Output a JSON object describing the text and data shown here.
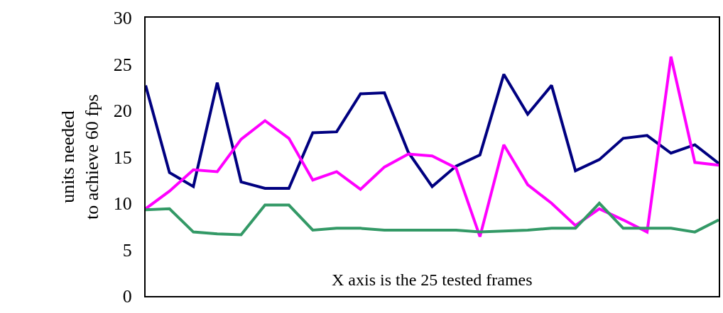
{
  "chart_data": {
    "type": "line",
    "ylabel": "units needed\nto achieve 60 fps",
    "annotations": [
      "X axis is the 25 tested frames"
    ],
    "categories": [
      null,
      null,
      null,
      null,
      null,
      null,
      null,
      null,
      null,
      null,
      null,
      null,
      null,
      null,
      null,
      null,
      null,
      null,
      null,
      null,
      null,
      null,
      null,
      null,
      null
    ],
    "series": [
      {
        "color": "#000080",
        "values": [
          22.7,
          13.3,
          11.8,
          23.0,
          12.3,
          11.6,
          11.6,
          17.6,
          17.7,
          21.8,
          21.9,
          15.5,
          11.8,
          14.0,
          15.2,
          23.9,
          19.6,
          22.7,
          13.5,
          14.7,
          17.0,
          17.3,
          15.4,
          16.3,
          14.3
        ]
      },
      {
        "color": "#ff00ff",
        "values": [
          9.4,
          11.3,
          13.6,
          13.4,
          16.9,
          18.9,
          17.0,
          12.5,
          13.4,
          11.5,
          13.9,
          15.3,
          15.1,
          13.8,
          6.4,
          16.3,
          12.0,
          10.0,
          7.6,
          9.4,
          8.2,
          6.9,
          25.8,
          14.4,
          14.1
        ]
      },
      {
        "color": "#339966",
        "values": [
          9.3,
          9.4,
          6.9,
          6.7,
          6.6,
          9.8,
          9.8,
          7.1,
          7.3,
          7.3,
          7.1,
          7.1,
          7.1,
          7.1,
          6.9,
          7.0,
          7.1,
          7.3,
          7.3,
          10.0,
          7.3,
          7.3,
          7.3,
          6.9,
          8.2
        ]
      }
    ],
    "ylim": [
      0,
      30
    ],
    "yticks": [
      0,
      5,
      10,
      15,
      20,
      25,
      30
    ],
    "grid": false,
    "legend": false,
    "marker": "none",
    "line_style": "solid"
  }
}
